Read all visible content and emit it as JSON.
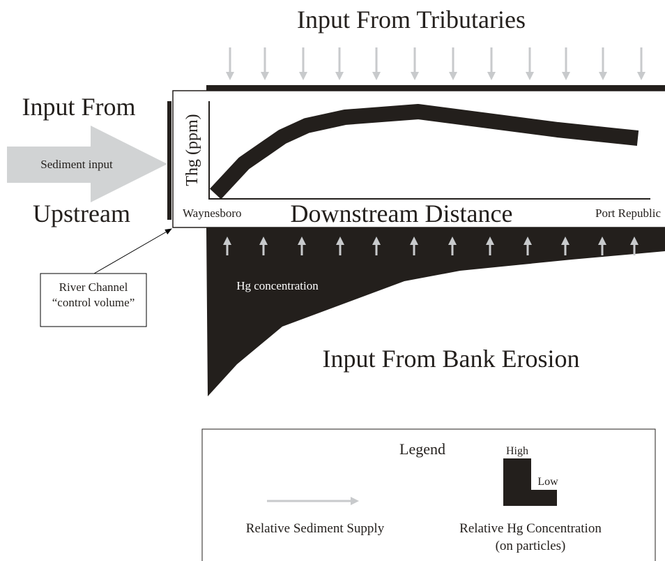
{
  "title": "Input From Tributaries",
  "upstream": {
    "line1": "Input From",
    "line2": "Upstream",
    "arrow_label": "Sediment input"
  },
  "plot": {
    "y_label": "Thg (ppm)",
    "x_label": "Downstream Distance",
    "start": "Waynesboro",
    "end": "Port Republic"
  },
  "bank": {
    "label": "Hg concentration",
    "title": "Input From Bank Erosion"
  },
  "callout": {
    "line1": "River Channel",
    "line2": "“control volume”"
  },
  "legend": {
    "title": "Legend",
    "high": "High",
    "low": "Low",
    "sediment": "Relative Sediment Supply",
    "hg_line1": "Relative Hg  Concentration",
    "hg_line2": "(on particles)"
  }
}
